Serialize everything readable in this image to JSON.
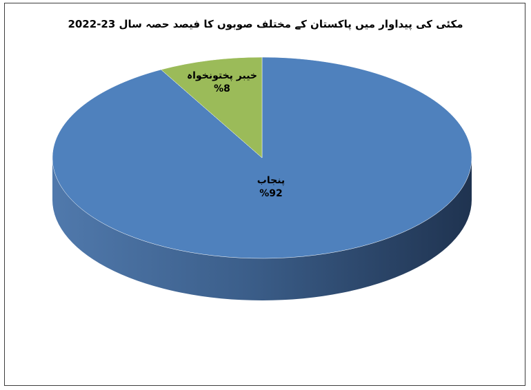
{
  "chart_data": {
    "type": "pie",
    "title": "مکئی کی پیداوار میں پاکستان کے مختلف صوبوں کا فیصد حصہ سال 23-2022",
    "categories": [
      "پنجاب",
      "خیبر پختونخواہ"
    ],
    "values": [
      92,
      8
    ],
    "value_labels": [
      "%92",
      "%8"
    ],
    "colors": [
      "#4f81bd",
      "#9bbb59"
    ],
    "style": "3d",
    "legend": "none"
  }
}
